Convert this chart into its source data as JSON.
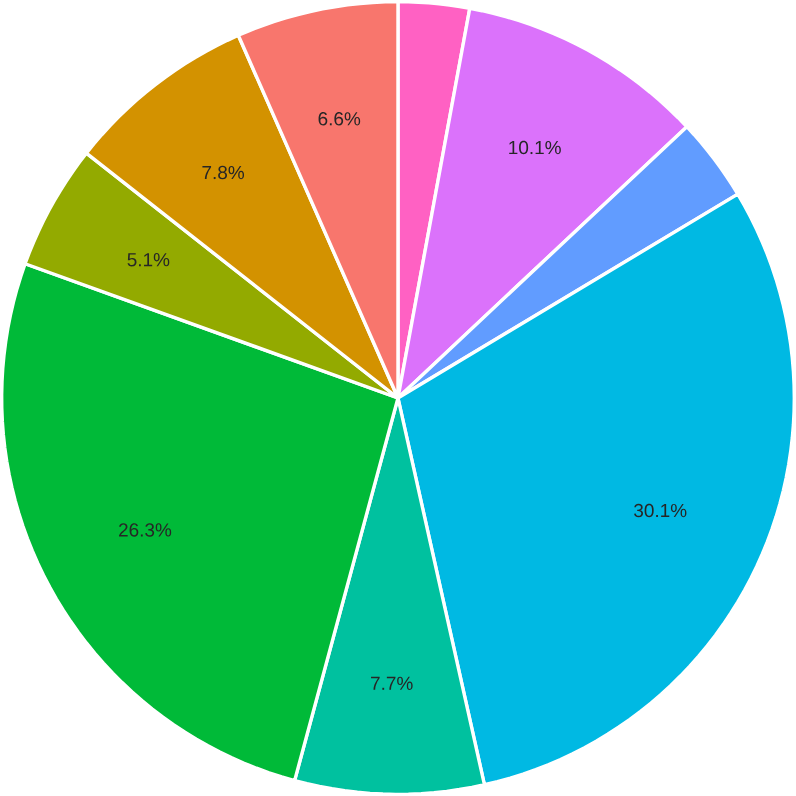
{
  "chart_data": {
    "type": "pie",
    "categories": [
      null,
      null,
      null,
      null,
      null,
      null,
      null,
      null,
      null
    ],
    "values": [
      2.9,
      10.1,
      3.4,
      30.1,
      7.7,
      26.3,
      5.1,
      7.8,
      6.6
    ],
    "colors": [
      "#ff61c3",
      "#db72fb",
      "#619cff",
      "#00b9e3",
      "#00c19f",
      "#00ba38",
      "#93aa00",
      "#d39200",
      "#f8766d"
    ],
    "value_labels": [
      null,
      "10.1%",
      null,
      "30.1%",
      "7.7%",
      "26.3%",
      "5.1%",
      "7.8%",
      "6.6%"
    ]
  }
}
